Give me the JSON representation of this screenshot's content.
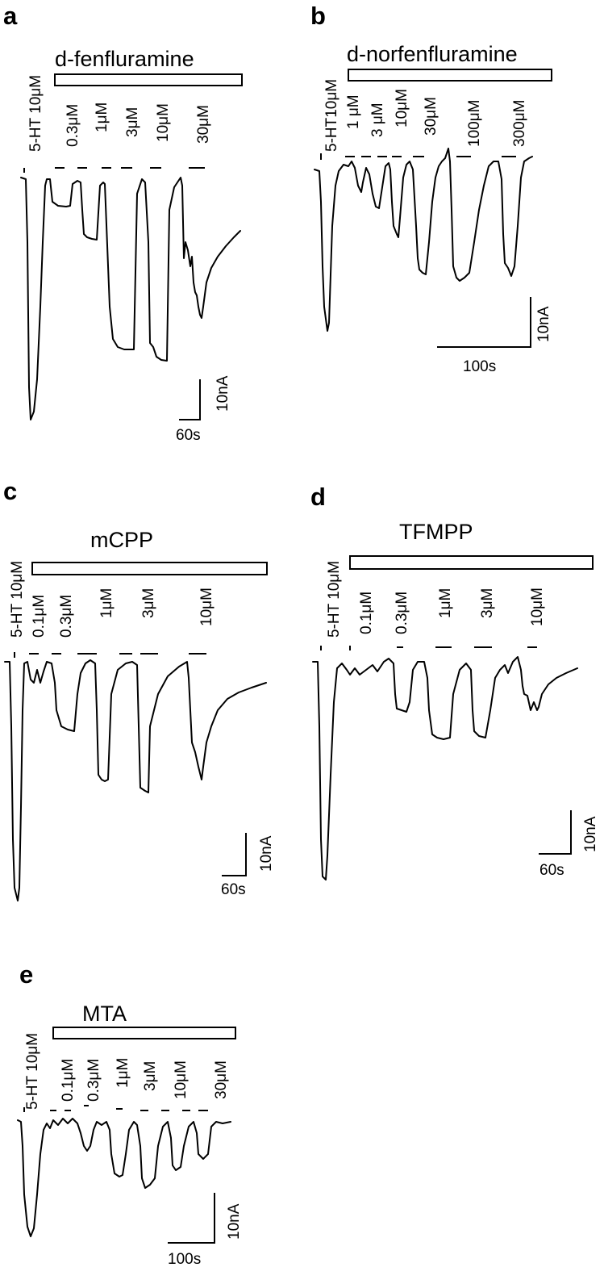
{
  "panels": {
    "a": {
      "letter": "a",
      "drug": "d-fenfluramine",
      "reference": "5-HT 10μM",
      "concentrations": [
        "0.3μM",
        "1μM",
        "3μM",
        "10μM",
        "30μM"
      ],
      "scale_time": "60s",
      "scale_current": "10nA"
    },
    "b": {
      "letter": "b",
      "drug": "d-norfenfluramine",
      "reference": "5-HT10μM",
      "concentrations": [
        "1 μM",
        "3 μM",
        "10μM",
        "30μM",
        "100μM",
        "300μM"
      ],
      "scale_time": "100s",
      "scale_current": "10nA"
    },
    "c": {
      "letter": "c",
      "drug": "mCPP",
      "reference": "5-HT 10μM",
      "concentrations": [
        "0.1μM",
        "0.3μM",
        "1μM",
        "3μM",
        "10μM"
      ],
      "scale_time": "60s",
      "scale_current": "10nA"
    },
    "d": {
      "letter": "d",
      "drug": "TFMPP",
      "reference": "5-HT 10μM",
      "concentrations": [
        "0.1μM",
        "0.3μM",
        "1μM",
        "3μM",
        "10μM"
      ],
      "scale_time": "60s",
      "scale_current": "10nA"
    },
    "e": {
      "letter": "e",
      "drug": "MTA",
      "reference": "5-HT 10μM",
      "concentrations": [
        "0.1μM",
        "0.3μM",
        "1μM",
        "3μM",
        "10μM",
        "30μM"
      ],
      "scale_time": "100s",
      "scale_current": "10nA"
    }
  }
}
